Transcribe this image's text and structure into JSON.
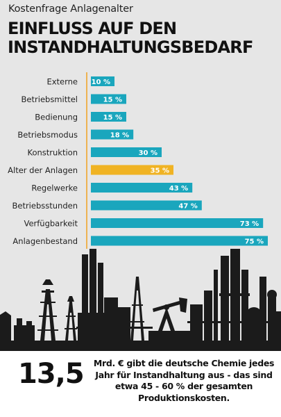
{
  "header": {
    "kicker": "Kostenfrage Anlagenalter",
    "headline": "EINFLUSS AUF DEN INSTANDHALTUNGSBEDARF"
  },
  "chart_data": {
    "type": "bar",
    "orientation": "horizontal",
    "title": "EINFLUSS AUF DEN INSTANDHALTUNGSBEDARF",
    "categories": [
      "Externe",
      "Betriebsmittel",
      "Bedienung",
      "Betriebsmodus",
      "Konstruktion",
      "Alter der Anlagen",
      "Regelwerke",
      "Betriebsstunden",
      "Verfügbarkeit",
      "Anlagenbestand"
    ],
    "values": [
      10,
      15,
      15,
      18,
      30,
      35,
      43,
      47,
      73,
      75
    ],
    "value_labels": [
      "10 %",
      "15 %",
      "15 %",
      "18 %",
      "30 %",
      "35 %",
      "43 %",
      "47 %",
      "73 %",
      "75 %"
    ],
    "unit": "%",
    "xlim": [
      0,
      80
    ],
    "highlight_category": "Alter der Anlagen",
    "colors": {
      "bar": "#1aa6bd",
      "highlight": "#f0b323",
      "axis": "#f0a020",
      "label": "#ffffff"
    },
    "grid": false,
    "legend": "none"
  },
  "footer": {
    "big_number": "13,5",
    "text": "Mrd. € gibt die deutsche Chemie jedes Jahr für Instandhaltung aus - das sind etwa 45 - 60 % der gesamten Produktionskosten."
  },
  "illustration": {
    "name": "industrial-skyline-silhouette",
    "color": "#1b1b1b"
  }
}
